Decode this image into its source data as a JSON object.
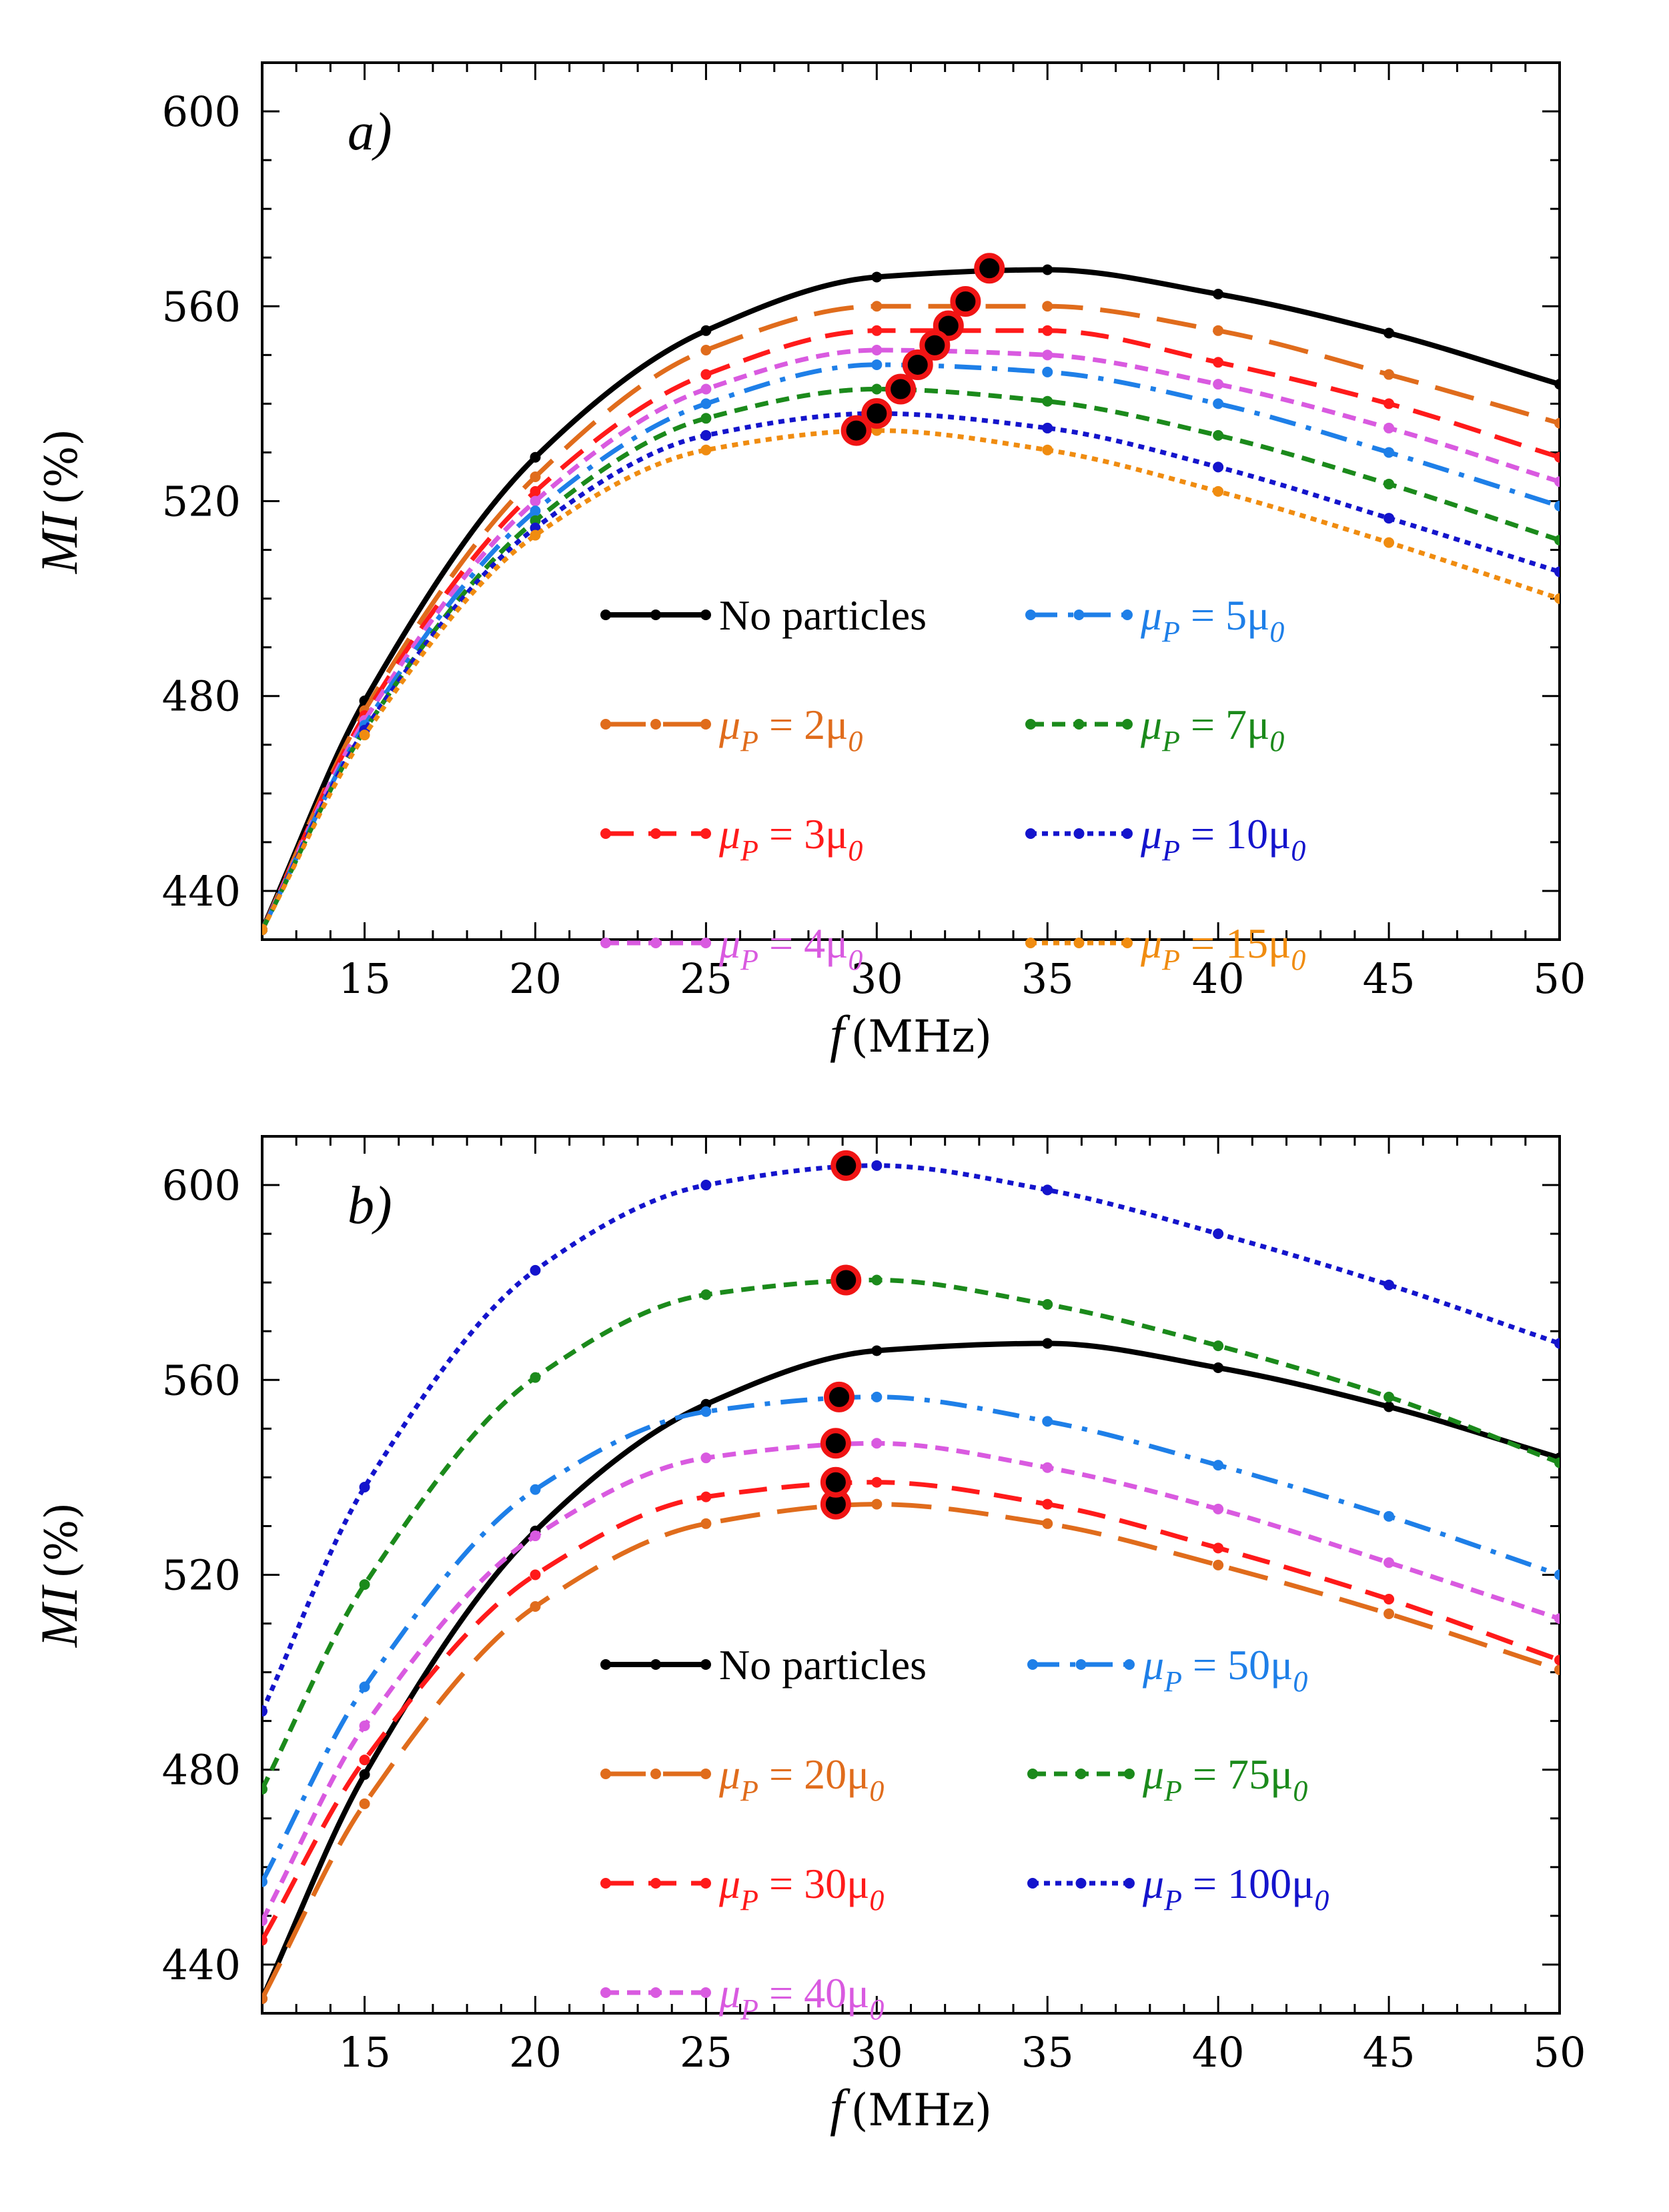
{
  "chart_data": [
    {
      "type": "line",
      "panel_label": "a)",
      "xlabel": {
        "symbol": "f",
        "unit": "(MHz)"
      },
      "ylabel": {
        "symbol": "MI",
        "unit": "(%)"
      },
      "xlim": [
        12,
        50
      ],
      "ylim": [
        430,
        610
      ],
      "xticks": [
        15,
        20,
        25,
        30,
        35,
        40,
        45,
        50
      ],
      "yticks": [
        440,
        480,
        520,
        560,
        600
      ],
      "legend": [
        {
          "series": "No particles",
          "text": "No particles"
        },
        {
          "series": "mu5",
          "pre": "μ",
          "sub1": "P",
          "mid": " = 5μ",
          "sub2": "0"
        },
        {
          "series": "mu2",
          "pre": "μ",
          "sub1": "P",
          "mid": " = 2μ",
          "sub2": "0"
        },
        {
          "series": "mu7",
          "pre": "μ",
          "sub1": "P",
          "mid": " = 7μ",
          "sub2": "0"
        },
        {
          "series": "mu3",
          "pre": "μ",
          "sub1": "P",
          "mid": " = 3μ",
          "sub2": "0"
        },
        {
          "series": "mu10",
          "pre": "μ",
          "sub1": "P",
          "mid": " = 10μ",
          "sub2": "0"
        },
        {
          "series": "mu4",
          "pre": "μ",
          "sub1": "P",
          "mid": " = 4μ",
          "sub2": "0"
        },
        {
          "series": "mu15",
          "pre": "μ",
          "sub1": "P",
          "mid": " = 15μ",
          "sub2": "0"
        }
      ],
      "series": [
        {
          "name": "No particles",
          "color": "#000000",
          "dash": "solid",
          "peak": [
            33.3,
            567.8
          ],
          "x": [
            12,
            15,
            20,
            25,
            30,
            35,
            40,
            45,
            50
          ],
          "values": [
            432,
            479,
            529,
            555,
            566,
            567.5,
            562.5,
            554.5,
            544
          ]
        },
        {
          "name": "mu2",
          "color": "#e06c1c",
          "dash": "longdash",
          "peak": [
            32.6,
            561
          ],
          "x": [
            12,
            15,
            20,
            25,
            30,
            35,
            40,
            45,
            50
          ],
          "values": [
            432,
            477,
            525,
            551,
            560,
            560,
            555,
            546,
            536
          ]
        },
        {
          "name": "mu3",
          "color": "#ff1a1a",
          "dash": "dash",
          "peak": [
            32.1,
            556
          ],
          "x": [
            12,
            15,
            20,
            25,
            30,
            35,
            40,
            45,
            50
          ],
          "values": [
            432,
            476,
            522,
            546,
            555,
            555,
            548.5,
            540,
            529
          ]
        },
        {
          "name": "mu4",
          "color": "#d95ae0",
          "dash": "shortdash",
          "peak": [
            31.7,
            552
          ],
          "x": [
            12,
            15,
            20,
            25,
            30,
            35,
            40,
            45,
            50
          ],
          "values": [
            432,
            475,
            520,
            543,
            551,
            550,
            544,
            535,
            524
          ]
        },
        {
          "name": "mu5",
          "color": "#1e7fe8",
          "dash": "dashdot",
          "peak": [
            31.2,
            548
          ],
          "x": [
            12,
            15,
            20,
            25,
            30,
            35,
            40,
            45,
            50
          ],
          "values": [
            432,
            474,
            518,
            540,
            548,
            546.5,
            540,
            530,
            519
          ]
        },
        {
          "name": "mu7",
          "color": "#1b8a1b",
          "dash": "shortdash",
          "peak": [
            30.7,
            543
          ],
          "x": [
            12,
            15,
            20,
            25,
            30,
            35,
            40,
            45,
            50
          ],
          "values": [
            432,
            473,
            516,
            537,
            543,
            540.5,
            533.5,
            523.5,
            512
          ]
        },
        {
          "name": "mu10",
          "color": "#1414cc",
          "dash": "dot",
          "peak": [
            30,
            538
          ],
          "x": [
            12,
            15,
            20,
            25,
            30,
            35,
            40,
            45,
            50
          ],
          "values": [
            432,
            473,
            514.5,
            533.5,
            538,
            535,
            527,
            516.5,
            505.5
          ]
        },
        {
          "name": "mu15",
          "color": "#f08c10",
          "dash": "dot",
          "peak": [
            29.4,
            534.5
          ],
          "x": [
            12,
            15,
            20,
            25,
            30,
            35,
            40,
            45,
            50
          ],
          "values": [
            432,
            472,
            513,
            530.5,
            534.5,
            530.5,
            522,
            511.5,
            500
          ]
        }
      ]
    },
    {
      "type": "line",
      "panel_label": "b)",
      "xlabel": {
        "symbol": "f",
        "unit": "(MHz)"
      },
      "ylabel": {
        "symbol": "MI",
        "unit": "(%)"
      },
      "xlim": [
        12,
        50
      ],
      "ylim": [
        430,
        610
      ],
      "xticks": [
        15,
        20,
        25,
        30,
        35,
        40,
        45,
        50
      ],
      "yticks": [
        440,
        480,
        520,
        560,
        600
      ],
      "legend": [
        {
          "series": "No particles",
          "text": "No particles"
        },
        {
          "series": "mu20",
          "pre": "μ",
          "sub1": "P",
          "mid": " = 20μ",
          "sub2": "0"
        },
        {
          "series": "mu50",
          "pre": "μ",
          "sub1": "P",
          "mid": " = 50μ",
          "sub2": "0"
        },
        {
          "series": "mu30",
          "pre": "μ",
          "sub1": "P",
          "mid": " = 30μ",
          "sub2": "0"
        },
        {
          "series": "mu75",
          "pre": "μ",
          "sub1": "P",
          "mid": " = 75μ",
          "sub2": "0"
        },
        {
          "series": "mu40",
          "pre": "μ",
          "sub1": "P",
          "mid": " = 40μ",
          "sub2": "0"
        },
        {
          "series": "mu100",
          "pre": "μ",
          "sub1": "P",
          "mid": " = 100μ",
          "sub2": "0"
        }
      ],
      "series": [
        {
          "name": "No particles",
          "color": "#000000",
          "dash": "solid",
          "peak": null,
          "x": [
            12,
            15,
            20,
            25,
            30,
            35,
            40,
            45,
            50
          ],
          "values": [
            433,
            479,
            529,
            555,
            566,
            567.5,
            562.5,
            554.5,
            544
          ]
        },
        {
          "name": "mu20",
          "color": "#e06c1c",
          "dash": "longdash",
          "peak": [
            28.8,
            534.5
          ],
          "x": [
            12,
            15,
            20,
            25,
            30,
            35,
            40,
            45,
            50
          ],
          "values": [
            433,
            473,
            513.5,
            530.5,
            534.5,
            530.5,
            522,
            512,
            500.5
          ]
        },
        {
          "name": "mu30",
          "color": "#ff1a1a",
          "dash": "dash",
          "peak": [
            28.8,
            539
          ],
          "x": [
            12,
            15,
            20,
            25,
            30,
            35,
            40,
            45,
            50
          ],
          "values": [
            445,
            482,
            520,
            536,
            539,
            534.5,
            525.5,
            515,
            502.5
          ]
        },
        {
          "name": "mu40",
          "color": "#d95ae0",
          "dash": "shortdash",
          "peak": [
            28.8,
            547
          ],
          "x": [
            12,
            15,
            20,
            25,
            30,
            35,
            40,
            45,
            50
          ],
          "values": [
            449,
            489,
            528,
            544,
            547,
            542,
            533.5,
            522.5,
            511
          ]
        },
        {
          "name": "mu50",
          "color": "#1e7fe8",
          "dash": "dashdot",
          "peak": [
            28.9,
            556.5
          ],
          "x": [
            12,
            15,
            20,
            25,
            30,
            35,
            40,
            45,
            50
          ],
          "values": [
            457,
            497,
            537.5,
            553.5,
            556.5,
            551.5,
            542.5,
            532,
            520
          ]
        },
        {
          "name": "mu75",
          "color": "#1b8a1b",
          "dash": "shortdash",
          "peak": [
            29.1,
            580.5
          ],
          "x": [
            12,
            15,
            20,
            25,
            30,
            35,
            40,
            45,
            50
          ],
          "values": [
            476,
            518,
            560.5,
            577.5,
            580.5,
            575.5,
            567,
            556.5,
            543
          ]
        },
        {
          "name": "mu100",
          "color": "#1414cc",
          "dash": "dot",
          "peak": [
            29.1,
            604
          ],
          "x": [
            12,
            15,
            20,
            25,
            30,
            35,
            40,
            45,
            50
          ],
          "values": [
            492,
            538,
            582.5,
            600,
            604,
            599,
            590,
            579.5,
            567.5
          ]
        }
      ]
    }
  ]
}
